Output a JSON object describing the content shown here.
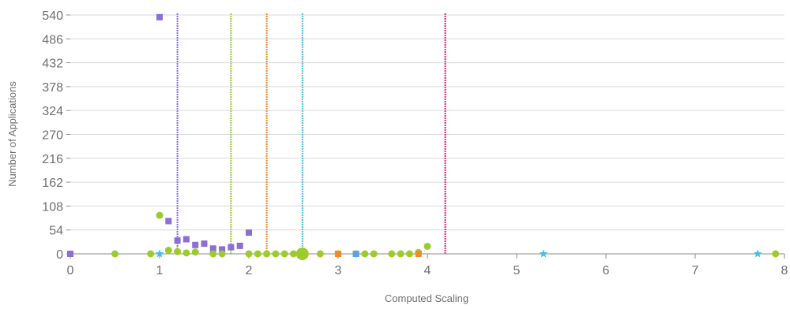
{
  "chart_data": {
    "type": "scatter",
    "title": "",
    "xlabel": "Computed Scaling",
    "ylabel": "Number of Applications",
    "xlim": [
      0,
      8
    ],
    "ylim": [
      0,
      540
    ],
    "xticks": [
      "0",
      "1",
      "2",
      "3",
      "4",
      "5",
      "6",
      "7",
      "8"
    ],
    "yticks": [
      "0",
      "54",
      "108",
      "162",
      "216",
      "270",
      "324",
      "378",
      "432",
      "486",
      "540"
    ],
    "grid": "horizontal",
    "legend": "none",
    "series": [
      {
        "color": "#8b6fd6",
        "marker": "square",
        "points": [
          [
            0,
            0
          ],
          [
            1,
            535
          ],
          [
            1.1,
            74
          ],
          [
            1.2,
            30
          ],
          [
            1.3,
            33
          ],
          [
            1.4,
            20
          ],
          [
            1.5,
            23
          ],
          [
            1.6,
            12
          ],
          [
            1.7,
            10
          ],
          [
            1.8,
            15
          ],
          [
            1.9,
            18
          ],
          [
            2,
            48
          ]
        ]
      },
      {
        "color": "#9ccc2c",
        "marker": "circle",
        "points": [
          [
            0.5,
            0
          ],
          [
            0.9,
            0
          ],
          [
            1,
            87
          ],
          [
            1.1,
            8
          ],
          [
            1.2,
            5
          ],
          [
            1.3,
            2
          ],
          [
            1.4,
            4
          ],
          [
            1.6,
            0
          ],
          [
            1.7,
            0
          ],
          [
            2,
            0
          ],
          [
            2.1,
            0
          ],
          [
            2.2,
            0
          ],
          [
            2.3,
            0
          ],
          [
            2.4,
            0
          ],
          [
            2.5,
            0
          ],
          [
            2.8,
            0
          ],
          [
            3,
            0
          ],
          [
            3.2,
            0
          ],
          [
            3.3,
            0
          ],
          [
            3.4,
            0
          ],
          [
            3.6,
            0
          ],
          [
            3.7,
            0
          ],
          [
            3.8,
            0
          ],
          [
            3.9,
            3
          ],
          [
            4,
            17
          ],
          [
            7.9,
            0
          ]
        ],
        "large_points": [
          [
            2.6,
            0
          ]
        ]
      },
      {
        "color": "#3fc3e6",
        "marker": "star",
        "points": [
          [
            1,
            0
          ],
          [
            5.3,
            0
          ],
          [
            7.7,
            0
          ]
        ]
      },
      {
        "color": "#f08a2c",
        "marker": "square",
        "points": [
          [
            3,
            0
          ],
          [
            3.9,
            0
          ]
        ]
      },
      {
        "color": "#5ba3e6",
        "marker": "square",
        "points": [
          [
            3.2,
            0
          ]
        ]
      }
    ],
    "reference_lines": [
      {
        "x": 1.2,
        "color": "#8b6fd6"
      },
      {
        "x": 1.8,
        "color": "#9ccc2c"
      },
      {
        "x": 2.2,
        "color": "#f08a2c"
      },
      {
        "x": 2.6,
        "color": "#3fc3e6"
      },
      {
        "x": 4.2,
        "color": "#e0257a"
      }
    ]
  }
}
